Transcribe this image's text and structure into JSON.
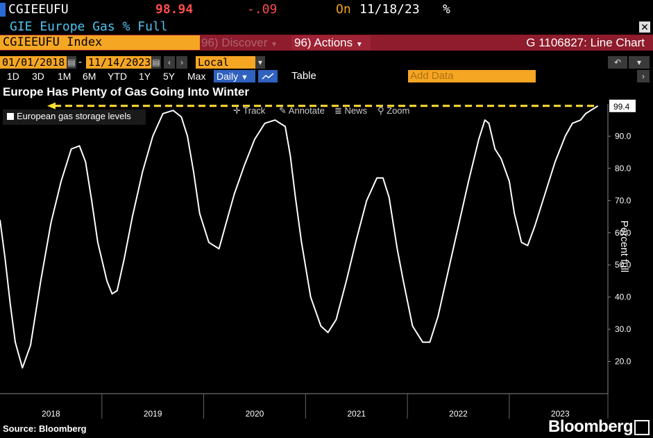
{
  "header": {
    "ticker": "CGIEEUFU",
    "price": "98.94",
    "change": "-.09",
    "on_label": "On",
    "date": "11/18/23",
    "percent_sign": "%",
    "subtitle": "GIE Europe Gas % Full",
    "close_label": "x"
  },
  "toolbar": {
    "index_label": "CGIEEUFU Index",
    "discover_label": "96) Discover",
    "actions_label": "96) Actions",
    "chart_id": "G 1106827: Line Chart",
    "start_date": "01/01/2018",
    "end_date": "11/14/2023",
    "date_separator": "-",
    "currency": "Local CCY",
    "periods": [
      "1D",
      "3D",
      "1M",
      "6M",
      "YTD",
      "1Y",
      "5Y",
      "Max"
    ],
    "frequency": "Daily",
    "table_label": "Table",
    "add_data_placeholder": "Add Data",
    "tools": [
      "Track",
      "Annotate",
      "News",
      "Zoom"
    ]
  },
  "footer": {
    "source": "Source: Bloomberg",
    "brand": "Bloomberg"
  },
  "colors": {
    "background": "#000000",
    "line": "#ffffff",
    "reference_line": "#ffe033",
    "accent_orange": "#f5a623",
    "accent_red": "#8e1c2c",
    "price_red": "#ff4d4d",
    "title_blue": "#4fc4f0"
  },
  "chart_data": {
    "type": "line",
    "title": "Europe Has Plenty of Gas Going Into Winter",
    "xlabel": "",
    "ylabel": "Percent full",
    "ylim": [
      10,
      100
    ],
    "yticks": [
      20,
      30,
      40,
      50,
      60,
      70,
      80,
      90
    ],
    "ytick_labels": [
      "20.0",
      "30.0",
      "40.0",
      "50.0",
      "60.0",
      "70.0",
      "80.0",
      "90.0"
    ],
    "xlim": [
      2018.0,
      2023.9
    ],
    "x_labels": [
      "2018",
      "2019",
      "2020",
      "2021",
      "2022",
      "2023"
    ],
    "legend": "top-left",
    "grid": false,
    "last_value_label": "99.4",
    "reference_line": {
      "y": 99.4,
      "style": "dashed",
      "color": "#ffe033"
    },
    "series": [
      {
        "name": "European gas storage levels",
        "x": [
          2018.0,
          2018.05,
          2018.1,
          2018.15,
          2018.22,
          2018.3,
          2018.4,
          2018.5,
          2018.6,
          2018.7,
          2018.78,
          2018.84,
          2018.9,
          2018.96,
          2019.05,
          2019.1,
          2019.15,
          2019.22,
          2019.3,
          2019.4,
          2019.5,
          2019.6,
          2019.7,
          2019.78,
          2019.84,
          2019.9,
          2019.96,
          2020.05,
          2020.15,
          2020.22,
          2020.3,
          2020.4,
          2020.5,
          2020.6,
          2020.7,
          2020.8,
          2020.85,
          2020.9,
          2020.96,
          2021.05,
          2021.15,
          2021.22,
          2021.3,
          2021.4,
          2021.5,
          2021.6,
          2021.7,
          2021.76,
          2021.82,
          2021.9,
          2021.96,
          2022.05,
          2022.15,
          2022.22,
          2022.3,
          2022.4,
          2022.5,
          2022.6,
          2022.7,
          2022.76,
          2022.8,
          2022.86,
          2022.92,
          2023.0,
          2023.05,
          2023.12,
          2023.18,
          2023.25,
          2023.35,
          2023.45,
          2023.55,
          2023.62,
          2023.7,
          2023.75,
          2023.8,
          2023.87
        ],
        "values": [
          64,
          52,
          38,
          26,
          18,
          25,
          45,
          63,
          76,
          86,
          87,
          82,
          70,
          57,
          45,
          41,
          42,
          52,
          65,
          79,
          90,
          97,
          98,
          96,
          90,
          79,
          66,
          57,
          55,
          63,
          72,
          81,
          89,
          94,
          95,
          93,
          84,
          71,
          57,
          40,
          31,
          29,
          33,
          45,
          58,
          70,
          77,
          77,
          71,
          55,
          45,
          31,
          26,
          26,
          34,
          48,
          62,
          76,
          89,
          95,
          94,
          86,
          83,
          76,
          66,
          57,
          56,
          62,
          72,
          82,
          90,
          94,
          95,
          97,
          98,
          99.4
        ]
      }
    ]
  }
}
